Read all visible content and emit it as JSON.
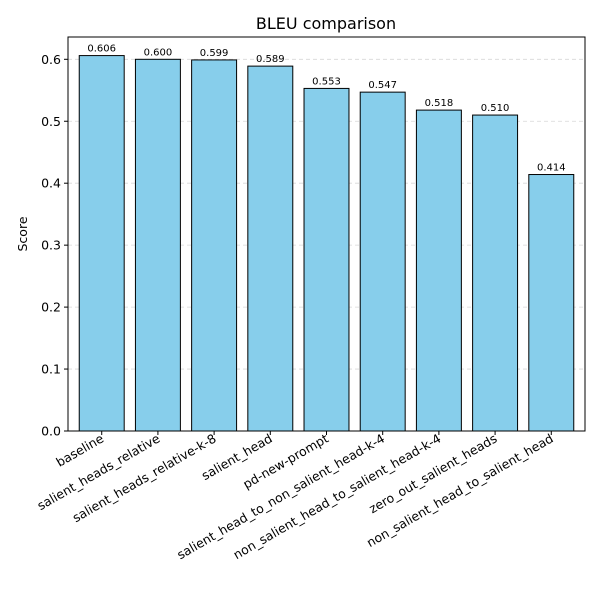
{
  "chart_data": {
    "type": "bar",
    "title": "BLEU comparison",
    "xlabel": "",
    "ylabel": "Score",
    "ylim": [
      0,
      0.636
    ],
    "yticks": [
      0.0,
      0.1,
      0.2,
      0.3,
      0.4,
      0.5,
      0.6
    ],
    "ytick_labels": [
      "0.0",
      "0.1",
      "0.2",
      "0.3",
      "0.4",
      "0.5",
      "0.6"
    ],
    "grid": "y-dashed",
    "bar_color": "#87CEEB",
    "edge_color": "#000000",
    "categories": [
      "baseline",
      "salient_heads_relative",
      "salient_heads_relative-k-8",
      "salient_head",
      "pd-new-prompt",
      "salient_head_to_non_salient_head-k-4",
      "non_salient_head_to_salient_head-k-4",
      "zero_out_salient_heads",
      "non_salient_head_to_salient_head"
    ],
    "values": [
      0.606,
      0.6,
      0.599,
      0.589,
      0.553,
      0.547,
      0.518,
      0.51,
      0.414
    ],
    "value_labels": [
      "0.606",
      "0.600",
      "0.599",
      "0.589",
      "0.553",
      "0.547",
      "0.518",
      "0.510",
      "0.414"
    ]
  }
}
